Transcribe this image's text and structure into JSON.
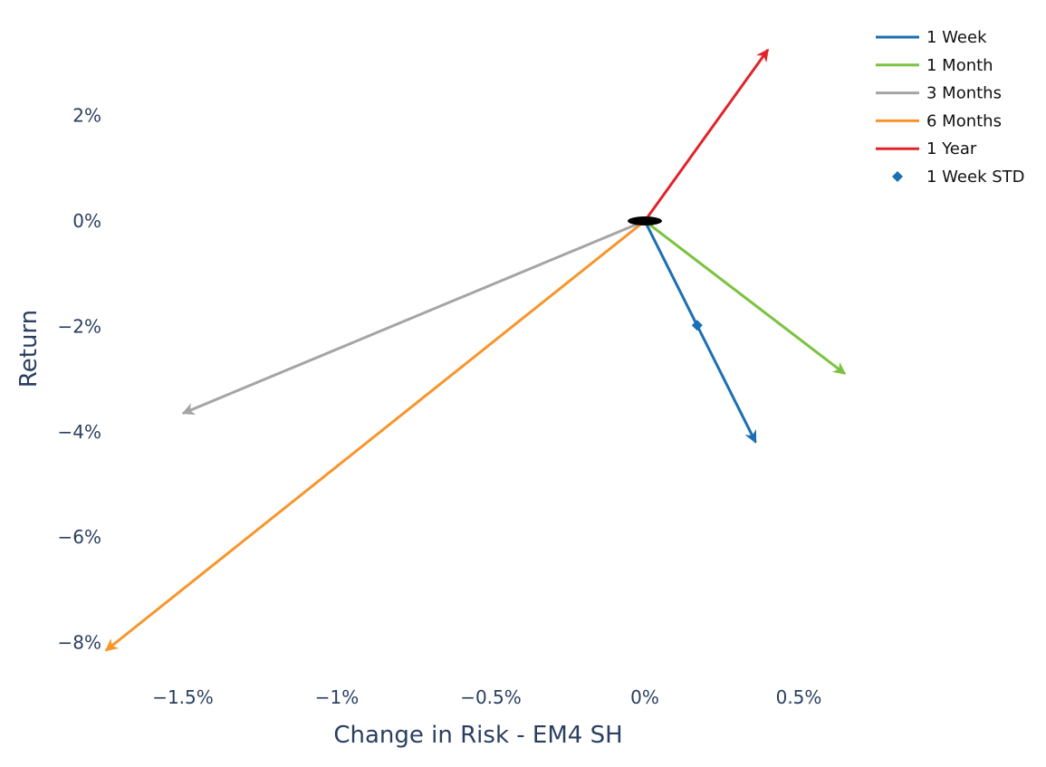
{
  "chart_data": {
    "type": "line",
    "title": "",
    "xlabel": "Change in Risk - EM4 SH",
    "ylabel": "Return",
    "xlim": [
      -1.75,
      1.05
    ],
    "ylim": [
      -8.75,
      3.4
    ],
    "xticks": [
      -1.5,
      -1,
      -0.5,
      0,
      0.5
    ],
    "xtick_labels": [
      "−1.5%",
      "−1%",
      "−0.5%",
      "0%",
      "0.5%"
    ],
    "yticks": [
      2,
      0,
      -2,
      -4,
      -6,
      -8
    ],
    "ytick_labels": [
      "2%",
      "0%",
      "−2%",
      "−4%",
      "−6%",
      "−8%"
    ],
    "grid": false,
    "legend_position": "top-right",
    "origin": {
      "x": 0,
      "y": 0,
      "color": "#000000"
    },
    "series": [
      {
        "name": "1 Week",
        "color": "#1a6fb5",
        "x": [
          0,
          0.36
        ],
        "y": [
          0,
          -4.2
        ],
        "arrow": true
      },
      {
        "name": "1 Month",
        "color": "#7cc242",
        "x": [
          0,
          0.65
        ],
        "y": [
          0,
          -2.9
        ],
        "arrow": true
      },
      {
        "name": "3 Months",
        "color": "#a5a5a5",
        "x": [
          0,
          -1.5
        ],
        "y": [
          0,
          -3.65
        ],
        "arrow": true
      },
      {
        "name": "6 Months",
        "color": "#f7952a",
        "x": [
          0,
          -1.75
        ],
        "y": [
          0,
          -8.15
        ],
        "arrow": true
      },
      {
        "name": "1 Year",
        "color": "#e1232a",
        "x": [
          0,
          0.4
        ],
        "y": [
          0,
          3.25
        ],
        "arrow": true
      }
    ],
    "markers": [
      {
        "name": "1 Week STD",
        "color": "#1a6fb5",
        "symbol": "diamond",
        "x": 0.17,
        "y": -1.98
      }
    ]
  }
}
